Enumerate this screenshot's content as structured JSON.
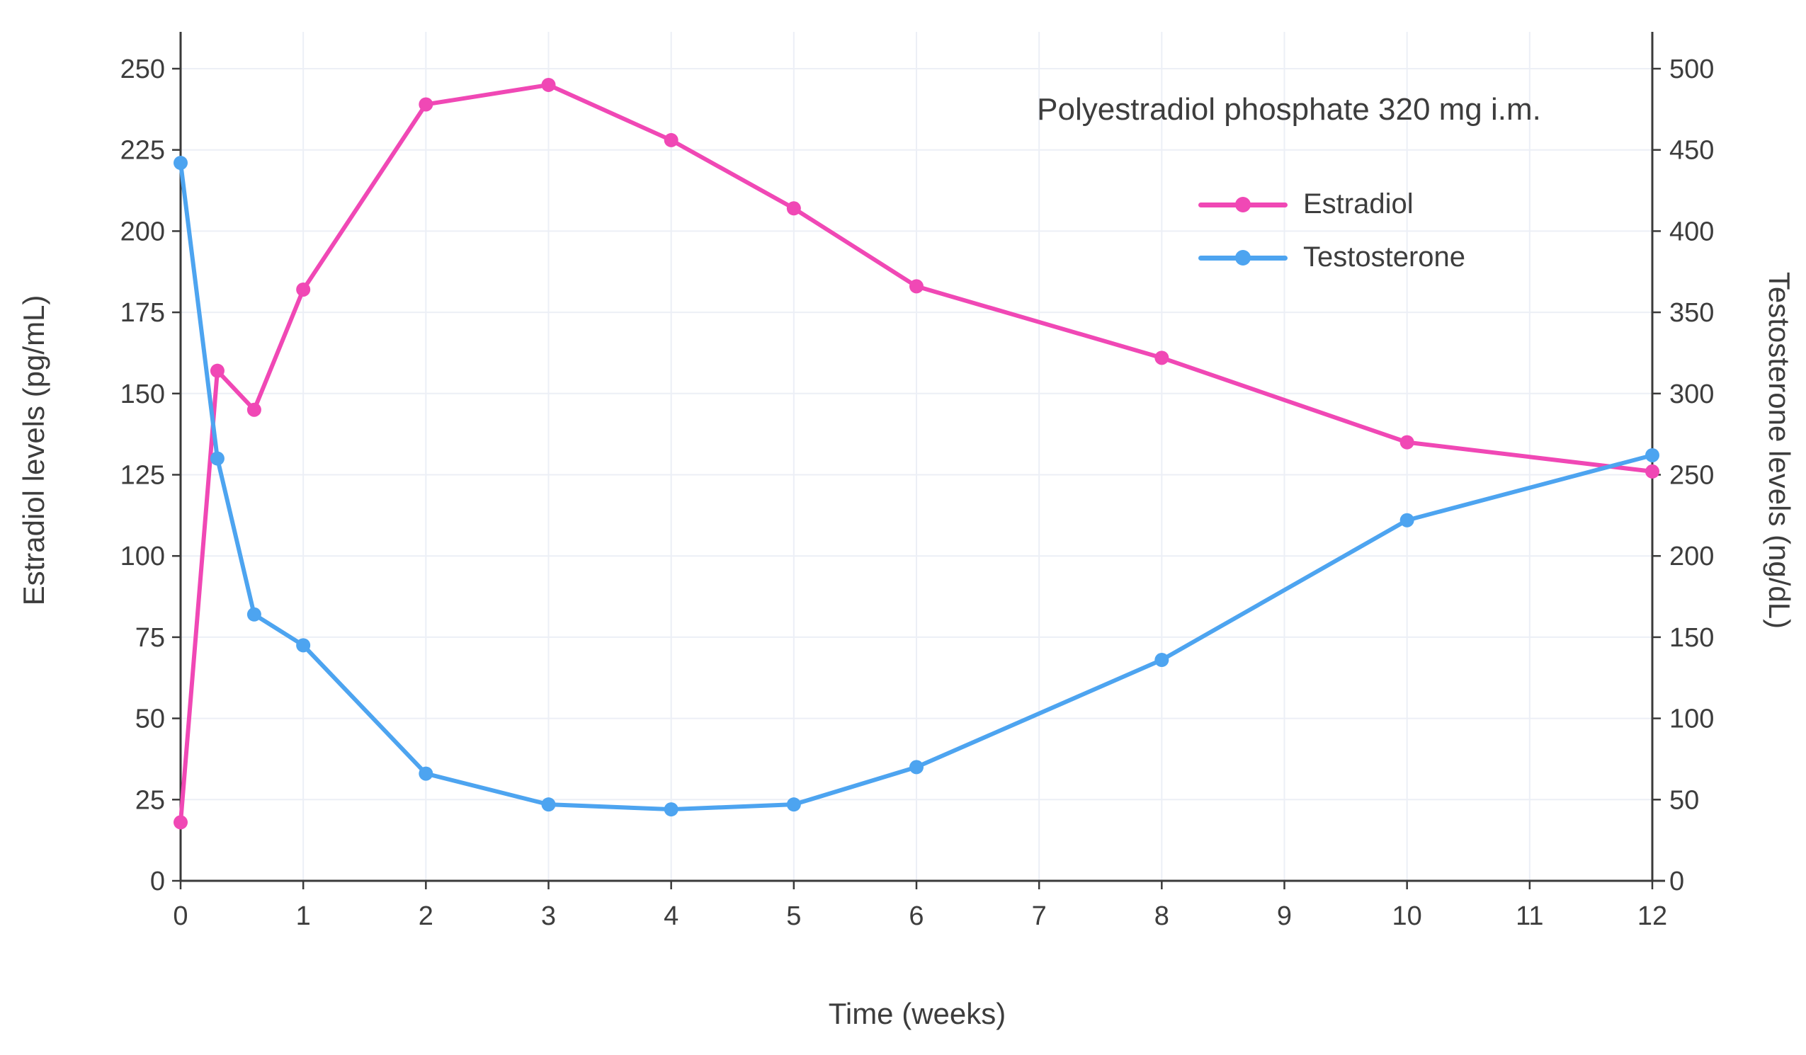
{
  "chart_data": {
    "type": "line",
    "annotation": "Polyestradiol phosphate 320 mg i.m.",
    "xlabel": "Time (weeks)",
    "ylabel_left": "Estradiol levels (pg/mL)",
    "ylabel_right": "Testosterone levels (ng/dL)",
    "xlim": [
      0,
      12
    ],
    "ylim_left": [
      0,
      250
    ],
    "ylim_right": [
      0,
      500
    ],
    "x_ticks": [
      0,
      1,
      2,
      3,
      4,
      5,
      6,
      7,
      8,
      9,
      10,
      11,
      12
    ],
    "y_left_ticks": [
      0,
      25,
      50,
      75,
      100,
      125,
      150,
      175,
      200,
      225,
      250
    ],
    "y_right_ticks": [
      0,
      50,
      100,
      150,
      200,
      250,
      300,
      350,
      400,
      450,
      500
    ],
    "grid": true,
    "legend_position": "top-right",
    "colors": {
      "grid": "#ECEFF6",
      "axis": "#3A3A3A",
      "text": "#3D3D3D",
      "background": "#FFFFFF"
    },
    "series": [
      {
        "name": "Estradiol",
        "axis": "left",
        "color": "#F048B5",
        "x": [
          0,
          0.3,
          0.6,
          1,
          2,
          3,
          4,
          5,
          6,
          8,
          10,
          12
        ],
        "values": [
          18,
          157,
          145,
          182,
          239,
          245,
          228,
          207,
          183,
          161,
          135,
          126
        ]
      },
      {
        "name": "Testosterone",
        "axis": "right",
        "color": "#4DA4F0",
        "x": [
          0,
          0.3,
          0.6,
          1,
          2,
          3,
          4,
          5,
          6,
          8,
          10,
          12
        ],
        "values": [
          442,
          260,
          164,
          145,
          66,
          47,
          44,
          47,
          70,
          136,
          222,
          262
        ]
      }
    ]
  }
}
